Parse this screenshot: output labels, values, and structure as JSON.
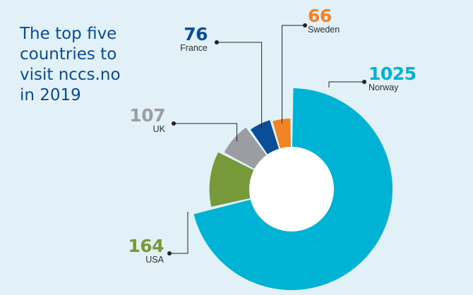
{
  "title_lines": [
    "The top five",
    "countries to",
    "visit nccs.no",
    "in 2019"
  ],
  "colors": {
    "background": "#e1f1f7",
    "title": "#0a4b94",
    "Norway": "#00b2d3",
    "USA": "#77993a",
    "UK": "#9a9ea3",
    "France": "#0b4e97",
    "Sweden": "#f08323",
    "hole": "#ffffff",
    "leader": "#222222"
  },
  "chart_data": {
    "type": "pie",
    "title": "The top five countries to visit nccs.no in 2019",
    "donut": true,
    "slices": [
      {
        "label": "Norway",
        "value": 1025
      },
      {
        "label": "USA",
        "value": 164
      },
      {
        "label": "UK",
        "value": 107
      },
      {
        "label": "France",
        "value": 76
      },
      {
        "label": "Sweden",
        "value": 66
      }
    ]
  },
  "labels": {
    "Norway": {
      "value": "1025",
      "name": "Norway"
    },
    "USA": {
      "value": "164",
      "name": "USA"
    },
    "UK": {
      "value": "107",
      "name": "UK"
    },
    "France": {
      "value": "76",
      "name": "France"
    },
    "Sweden": {
      "value": "66",
      "name": "Sweden"
    }
  }
}
